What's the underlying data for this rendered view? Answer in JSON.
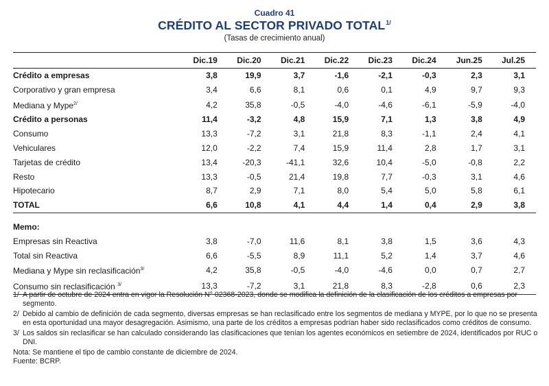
{
  "header": {
    "kicker": "Cuadro 41",
    "title": "CRÉDITO AL SECTOR PRIVADO TOTAL",
    "title_note": "1/",
    "subtitle": "(Tasas de crecimiento anual)"
  },
  "columns": [
    "Dic.19",
    "Dic.20",
    "Dic.21",
    "Dic.22",
    "Dic.23",
    "Dic.24",
    "Jun.25",
    "Jul.25"
  ],
  "rows": {
    "empresas": {
      "label": "Crédito a empresas",
      "values": [
        "3,8",
        "19,9",
        "3,7",
        "-1,6",
        "-2,1",
        "-0,3",
        "2,3",
        "3,1"
      ]
    },
    "corporativo": {
      "label": "Corporativo y gran empresa",
      "values": [
        "3,4",
        "6,6",
        "8,1",
        "0,6",
        "0,1",
        "4,9",
        "9,7",
        "9,3"
      ]
    },
    "mediana": {
      "label": "Mediana y Mype",
      "note": "2/",
      "values": [
        "4,2",
        "35,8",
        "-0,5",
        "-4,0",
        "-4,6",
        "-6,1",
        "-5,9",
        "-4,0"
      ]
    },
    "personas": {
      "label": "Crédito a personas",
      "values": [
        "11,4",
        "-3,2",
        "4,8",
        "15,9",
        "7,1",
        "1,3",
        "3,8",
        "4,9"
      ]
    },
    "consumo": {
      "label": "Consumo",
      "values": [
        "13,3",
        "-7,2",
        "3,1",
        "21,8",
        "8,3",
        "-1,1",
        "2,4",
        "4,1"
      ]
    },
    "vehiculares": {
      "label": "Vehiculares",
      "values": [
        "12,0",
        "-2,2",
        "7,4",
        "15,9",
        "11,4",
        "2,8",
        "1,7",
        "3,1"
      ]
    },
    "tarjetas": {
      "label": "Tarjetas de crédito",
      "values": [
        "13,4",
        "-20,3",
        "-41,1",
        "32,6",
        "10,4",
        "-5,0",
        "-0,8",
        "2,2"
      ]
    },
    "resto": {
      "label": "Resto",
      "values": [
        "13,3",
        "-0,5",
        "21,4",
        "19,8",
        "7,7",
        "-0,3",
        "3,1",
        "4,6"
      ]
    },
    "hipotecario": {
      "label": "Hipotecario",
      "values": [
        "8,7",
        "2,9",
        "7,1",
        "8,0",
        "5,4",
        "5,0",
        "5,8",
        "6,1"
      ]
    },
    "total": {
      "label": "TOTAL",
      "values": [
        "6,6",
        "10,8",
        "4,1",
        "4,4",
        "1,4",
        "0,4",
        "2,9",
        "3,8"
      ]
    }
  },
  "memo": {
    "label": "Memo:",
    "rows": {
      "emp_sin_reactiva": {
        "label": "Empresas sin Reactiva",
        "values": [
          "3,8",
          "-7,0",
          "11,6",
          "8,1",
          "3,8",
          "1,5",
          "3,6",
          "4,3"
        ]
      },
      "total_sin_reactiva": {
        "label": "Total sin Reactiva",
        "values": [
          "6,6",
          "-5,5",
          "8,9",
          "11,1",
          "5,2",
          "1,4",
          "3,7",
          "4,6"
        ]
      },
      "mediana_sin_reclas": {
        "label": "Mediana y Mype sin reclasificación",
        "note": "3/",
        "values": [
          "4,2",
          "35,8",
          "-0,5",
          "-4,0",
          "-4,6",
          "0,0",
          "0,7",
          "2,7"
        ]
      },
      "consumo_sin_reclas": {
        "label": "Consumo sin reclasificación ",
        "note": "3/",
        "values": [
          "13,3",
          "-7,2",
          "3,1",
          "21,8",
          "8,3",
          "-2,8",
          "0,6",
          "2,3"
        ]
      }
    }
  },
  "footnotes": {
    "n1": {
      "key": "1/",
      "text": "A partir de octubre de 2024 entra en vigor la Resolución N° 02368-2023, donde se modifica la definición de la clasificación de los créditos a empresas por segmento."
    },
    "n2": {
      "key": "2/",
      "text": "Debido al cambio de definición de cada segmento, diversas empresas se han reclasificado entre los segmentos de mediana y MYPE, por lo que no se presenta en esta oportunidad una mayor desagregación. Asimismo, una parte de los créditos a empresas podrían haber sido reclasificados como créditos de consumo."
    },
    "n3": {
      "key": "3/",
      "text": "Los saldos sin reclasificar se han calculado considerando las clasificaciones que tenían los agentes económicos en setiembre de 2024, identificados por RUC o DNI."
    },
    "nota": "Nota: Se mantiene el tipo de cambio constante de diciembre de 2024.",
    "fuente": "Fuente: BCRP."
  }
}
